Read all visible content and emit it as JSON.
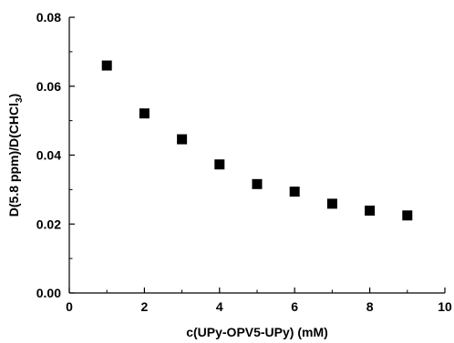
{
  "chart_data": {
    "type": "scatter",
    "title": "",
    "xlabel": "c(UPy-OPV5-UPy) (mM)",
    "ylabel": {
      "main": "D(5.8 ppm)/D(CHCl",
      "subscript": "3",
      "close": ")"
    },
    "xlim": [
      0,
      10
    ],
    "ylim": [
      0.0,
      0.08
    ],
    "x_ticks": [
      0,
      2,
      4,
      6,
      8,
      10
    ],
    "x_tick_labels": [
      "0",
      "2",
      "4",
      "6",
      "8",
      "10"
    ],
    "y_ticks": [
      0.0,
      0.02,
      0.04,
      0.06,
      0.08
    ],
    "y_tick_labels": [
      "0.00",
      "0.02",
      "0.04",
      "0.06",
      "0.08"
    ],
    "grid": false,
    "marker": "square",
    "color": "#000000",
    "series": [
      {
        "x": [
          1,
          2,
          3,
          4,
          5,
          6,
          7,
          8,
          9
        ],
        "y": [
          0.066,
          0.0521,
          0.0446,
          0.0373,
          0.0316,
          0.0294,
          0.0259,
          0.0239,
          0.0225
        ]
      }
    ]
  }
}
